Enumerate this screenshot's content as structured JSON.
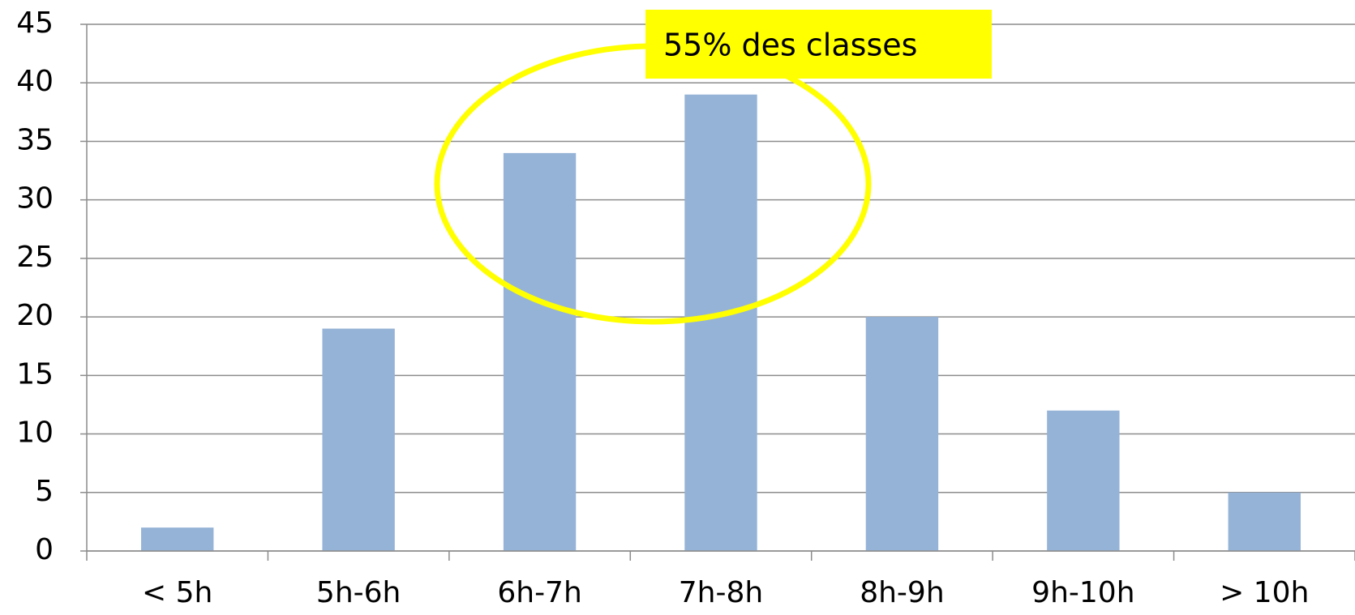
{
  "chart_data": {
    "type": "bar",
    "categories": [
      "< 5h",
      "5h-6h",
      "6h-7h",
      "7h-8h",
      "8h-9h",
      "9h-10h",
      "> 10h"
    ],
    "values": [
      2,
      19,
      34,
      39,
      20,
      12,
      5
    ],
    "color": "#95b3d7",
    "ylim": [
      0,
      45
    ],
    "yticks": [
      0,
      5,
      10,
      15,
      20,
      25,
      30,
      35,
      40,
      45
    ],
    "grid": true,
    "annotation": "55% des classes"
  }
}
